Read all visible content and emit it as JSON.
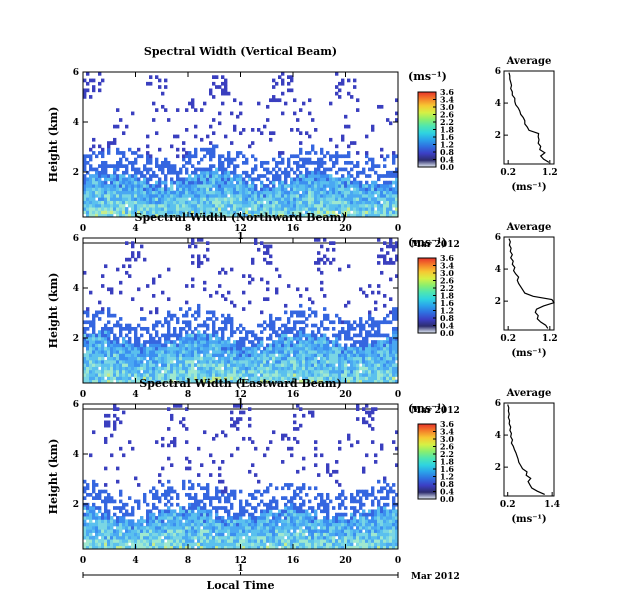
{
  "colorbar": {
    "unit": "(ms⁻¹)",
    "ticks": [
      "3.6",
      "3.4",
      "3.0",
      "2.6",
      "2.2",
      "1.8",
      "1.6",
      "1.2",
      "0.8",
      "0.4",
      "0.0"
    ],
    "stops": [
      "#e7f0f8",
      "#2d2d6e",
      "#3c3fc4",
      "#2f6fe0",
      "#2aa3ea",
      "#2fd4e0",
      "#4fe6b0",
      "#8cef6c",
      "#d7f044",
      "#f7c832",
      "#f47f2a",
      "#e8332a"
    ]
  },
  "chart_data": [
    {
      "type": "heatmap",
      "title": "Spectral Width (Vertical Beam)",
      "ylabel": "Height (km)",
      "xticks": [
        "0",
        "4",
        "8",
        "12",
        "16",
        "20",
        "0"
      ],
      "yticks": [
        "6",
        "4",
        "2"
      ],
      "date_label": "Mar 2012",
      "day_label": "1",
      "xlim": [
        0,
        24
      ],
      "ylim": [
        0.2,
        6
      ],
      "dense_top_km": 1.6,
      "profile": {
        "title": "Average",
        "xlabel": "(ms⁻¹)",
        "xticks": [
          "0.2",
          "1.2"
        ],
        "xlim": [
          0.1,
          1.3
        ],
        "yticks": [
          "6",
          "4",
          "2"
        ],
        "ylim": [
          0.2,
          6
        ],
        "heights": [
          0.3,
          0.5,
          0.7,
          0.9,
          1.1,
          1.3,
          1.5,
          1.7,
          1.9,
          2.1,
          2.3,
          2.5,
          2.7,
          2.9,
          3.1,
          3.3,
          3.5,
          3.7,
          3.9,
          4.1,
          4.3,
          4.5,
          4.7,
          4.9,
          5.1,
          5.3,
          5.5,
          5.7,
          5.9
        ],
        "values": [
          1.18,
          1.05,
          0.98,
          1.08,
          0.96,
          0.98,
          0.92,
          0.94,
          0.92,
          0.93,
          0.7,
          0.66,
          0.6,
          0.6,
          0.56,
          0.5,
          0.48,
          0.44,
          0.38,
          0.36,
          0.36,
          0.3,
          0.3,
          0.26,
          0.28,
          0.26,
          0.24,
          0.24,
          0.22
        ]
      }
    },
    {
      "type": "heatmap",
      "title": "Spectral Width (Northward Beam)",
      "ylabel": "Height (km)",
      "xticks": [
        "0",
        "4",
        "8",
        "12",
        "16",
        "20",
        "0"
      ],
      "yticks": [
        "6",
        "4",
        "2"
      ],
      "date_label": "Mar 2012",
      "day_label": "1",
      "xlim": [
        0,
        24
      ],
      "ylim": [
        0.2,
        6
      ],
      "dense_top_km": 1.8,
      "profile": {
        "title": "Average",
        "xlabel": "(ms⁻¹)",
        "xticks": [
          "0.2",
          "1.2"
        ],
        "xlim": [
          0.1,
          1.3
        ],
        "yticks": [
          "6",
          "4",
          "2"
        ],
        "ylim": [
          0.2,
          6
        ],
        "heights": [
          0.3,
          0.5,
          0.7,
          0.9,
          1.1,
          1.3,
          1.5,
          1.7,
          1.9,
          2.1,
          2.3,
          2.5,
          2.7,
          2.9,
          3.1,
          3.3,
          3.5,
          3.7,
          3.9,
          4.1,
          4.3,
          4.5,
          4.7,
          4.9,
          5.1,
          5.3,
          5.5,
          5.7,
          5.9
        ],
        "values": [
          1.15,
          1.1,
          0.98,
          0.9,
          0.92,
          0.85,
          0.88,
          1.05,
          1.3,
          1.25,
          0.8,
          0.6,
          0.55,
          0.5,
          0.45,
          0.42,
          0.45,
          0.38,
          0.33,
          0.36,
          0.3,
          0.32,
          0.26,
          0.3,
          0.25,
          0.27,
          0.23,
          0.25,
          0.22
        ]
      }
    },
    {
      "type": "heatmap",
      "title": "Spectral Width (Eastward Beam)",
      "ylabel": "Height (km)",
      "xticks": [
        "0",
        "4",
        "8",
        "12",
        "16",
        "20",
        "0"
      ],
      "yticks": [
        "6",
        "4",
        "2"
      ],
      "date_label": "Mar 2012",
      "day_label": "1",
      "x_title": "Local Time",
      "xlim": [
        0,
        24
      ],
      "ylim": [
        0.2,
        6
      ],
      "dense_top_km": 1.5,
      "profile": {
        "title": "Average",
        "xlabel": "(ms⁻¹)",
        "xticks": [
          "0.2",
          "1.4"
        ],
        "xlim": [
          0.1,
          1.45
        ],
        "yticks": [
          "6",
          "4",
          "2"
        ],
        "ylim": [
          0.2,
          6
        ],
        "heights": [
          0.3,
          0.5,
          0.7,
          0.9,
          1.1,
          1.3,
          1.5,
          1.7,
          1.9,
          2.1,
          2.3,
          2.5,
          2.7,
          2.9,
          3.1,
          3.3,
          3.5,
          3.7,
          3.9,
          4.1,
          4.3,
          4.5,
          4.7,
          4.9,
          5.1,
          5.3,
          5.5,
          5.7,
          5.9
        ],
        "values": [
          1.2,
          1.0,
          0.85,
          0.8,
          0.75,
          0.82,
          0.7,
          0.72,
          0.6,
          0.55,
          0.5,
          0.48,
          0.45,
          0.42,
          0.38,
          0.35,
          0.3,
          0.33,
          0.28,
          0.3,
          0.26,
          0.28,
          0.24,
          0.25,
          0.22,
          0.24,
          0.22,
          0.23,
          0.2
        ]
      }
    }
  ]
}
